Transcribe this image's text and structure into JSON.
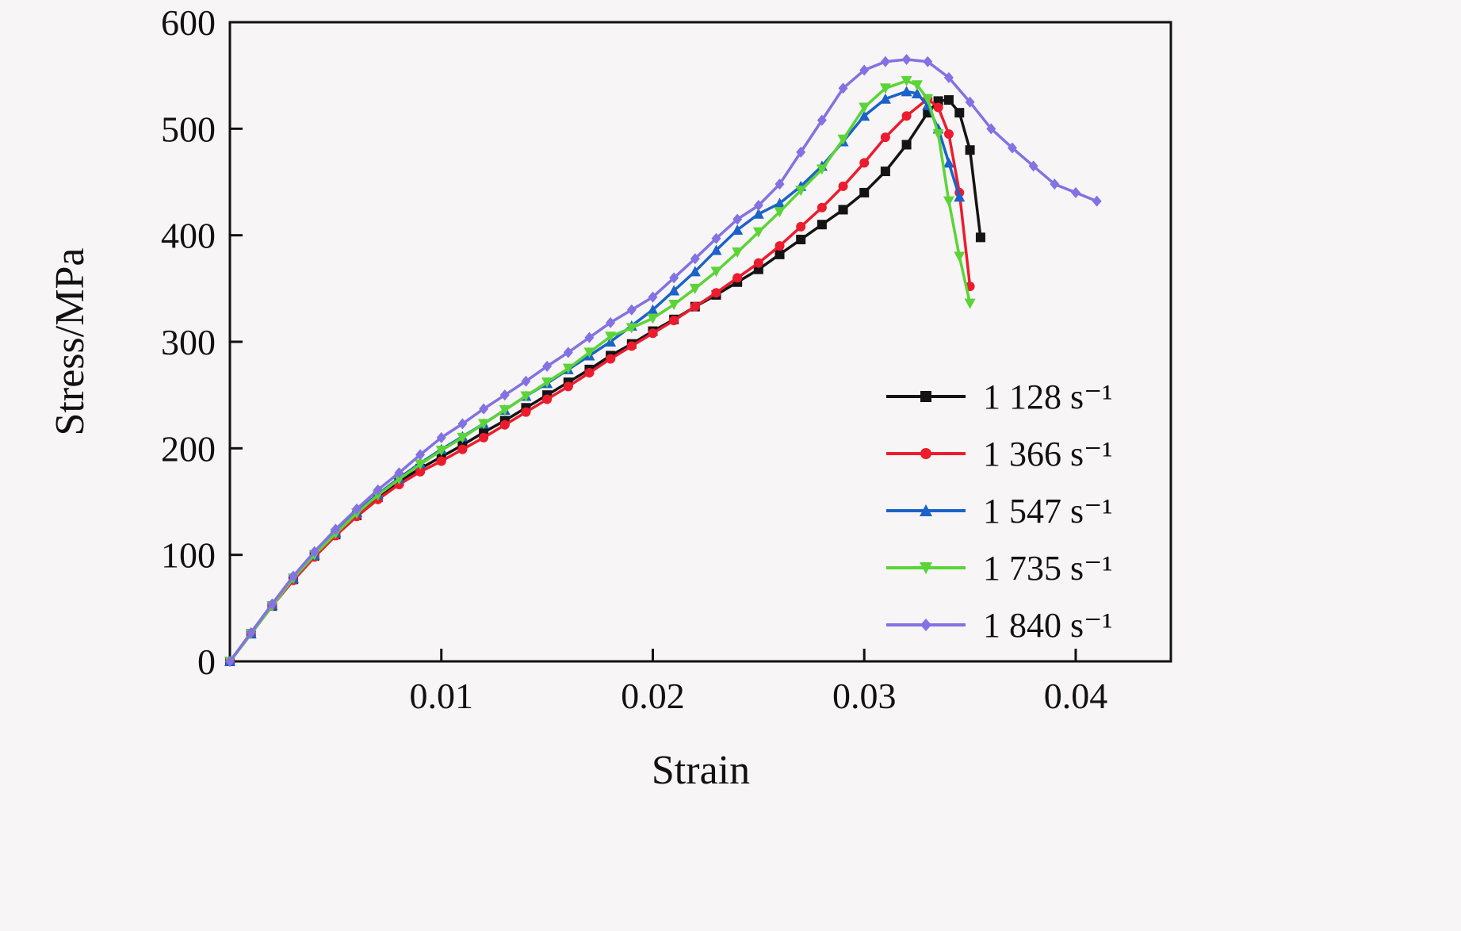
{
  "chart_data": {
    "type": "line",
    "xlabel": "Strain",
    "ylabel": "Stress/MPa",
    "xlim": [
      0,
      0.0445
    ],
    "ylim": [
      0,
      600
    ],
    "xticks": [
      "0.01",
      "0.02",
      "0.03",
      "0.04"
    ],
    "yticks": [
      "0",
      "100",
      "200",
      "300",
      "400",
      "500",
      "600"
    ],
    "grid": false,
    "legend_position": "right-middle",
    "series": [
      {
        "name": "1 128 s⁻¹",
        "color": "#141414",
        "marker": "square",
        "x": [
          0,
          0.001,
          0.002,
          0.003,
          0.004,
          0.005,
          0.006,
          0.007,
          0.008,
          0.009,
          0.01,
          0.011,
          0.012,
          0.013,
          0.014,
          0.015,
          0.016,
          0.017,
          0.018,
          0.019,
          0.02,
          0.021,
          0.022,
          0.023,
          0.024,
          0.025,
          0.026,
          0.027,
          0.028,
          0.029,
          0.03,
          0.031,
          0.032,
          0.033,
          0.0335,
          0.034,
          0.0345,
          0.035,
          0.0355
        ],
        "y": [
          0,
          26,
          52,
          77,
          99,
          119,
          137,
          154,
          169,
          181,
          192,
          203,
          215,
          226,
          238,
          250,
          262,
          274,
          287,
          298,
          310,
          321,
          333,
          344,
          356,
          368,
          382,
          396,
          410,
          424,
          440,
          460,
          485,
          515,
          526,
          527,
          515,
          480,
          398
        ]
      },
      {
        "name": "1 366 s⁻¹",
        "color": "#ec1c2e",
        "marker": "circle",
        "x": [
          0,
          0.001,
          0.002,
          0.003,
          0.004,
          0.005,
          0.006,
          0.007,
          0.008,
          0.009,
          0.01,
          0.011,
          0.012,
          0.013,
          0.014,
          0.015,
          0.016,
          0.017,
          0.018,
          0.019,
          0.02,
          0.021,
          0.022,
          0.023,
          0.024,
          0.025,
          0.026,
          0.027,
          0.028,
          0.029,
          0.03,
          0.031,
          0.032,
          0.033,
          0.0335,
          0.034,
          0.0345,
          0.035
        ],
        "y": [
          0,
          26,
          52,
          76,
          98,
          118,
          136,
          152,
          166,
          178,
          188,
          199,
          210,
          222,
          234,
          246,
          258,
          271,
          284,
          296,
          308,
          320,
          333,
          346,
          360,
          374,
          390,
          408,
          426,
          446,
          468,
          492,
          512,
          528,
          520,
          495,
          440,
          352
        ]
      },
      {
        "name": "1 547 s⁻¹",
        "color": "#1b62c9",
        "marker": "triangle-up",
        "x": [
          0,
          0.001,
          0.002,
          0.003,
          0.004,
          0.005,
          0.006,
          0.007,
          0.008,
          0.009,
          0.01,
          0.011,
          0.012,
          0.013,
          0.014,
          0.015,
          0.016,
          0.017,
          0.018,
          0.019,
          0.02,
          0.021,
          0.022,
          0.023,
          0.024,
          0.025,
          0.026,
          0.027,
          0.028,
          0.029,
          0.03,
          0.031,
          0.032,
          0.0325,
          0.033,
          0.0335,
          0.034,
          0.0345
        ],
        "y": [
          0,
          26,
          53,
          78,
          100,
          121,
          140,
          157,
          172,
          186,
          199,
          211,
          223,
          236,
          249,
          261,
          274,
          287,
          300,
          315,
          330,
          348,
          366,
          386,
          405,
          420,
          430,
          446,
          465,
          488,
          512,
          528,
          535,
          533,
          522,
          500,
          468,
          436
        ]
      },
      {
        "name": "1 735 s⁻¹",
        "color": "#5bd438",
        "marker": "triangle-down",
        "x": [
          0,
          0.001,
          0.002,
          0.003,
          0.004,
          0.005,
          0.006,
          0.007,
          0.008,
          0.009,
          0.01,
          0.011,
          0.012,
          0.013,
          0.014,
          0.015,
          0.016,
          0.017,
          0.018,
          0.019,
          0.02,
          0.021,
          0.022,
          0.023,
          0.024,
          0.025,
          0.026,
          0.027,
          0.028,
          0.029,
          0.03,
          0.031,
          0.032,
          0.0325,
          0.033,
          0.0335,
          0.034,
          0.0345,
          0.035
        ],
        "y": [
          0,
          26,
          52,
          78,
          100,
          120,
          139,
          156,
          171,
          185,
          198,
          210,
          223,
          236,
          249,
          262,
          275,
          290,
          305,
          313,
          322,
          335,
          350,
          366,
          384,
          403,
          422,
          442,
          462,
          490,
          520,
          538,
          545,
          541,
          528,
          495,
          432,
          380,
          336
        ]
      },
      {
        "name": "1 840 s⁻¹",
        "color": "#8272e2",
        "marker": "diamond",
        "x": [
          0,
          0.001,
          0.002,
          0.003,
          0.004,
          0.005,
          0.006,
          0.007,
          0.008,
          0.009,
          0.01,
          0.011,
          0.012,
          0.013,
          0.014,
          0.015,
          0.016,
          0.017,
          0.018,
          0.019,
          0.02,
          0.021,
          0.022,
          0.023,
          0.024,
          0.025,
          0.026,
          0.027,
          0.028,
          0.029,
          0.03,
          0.031,
          0.032,
          0.033,
          0.034,
          0.035,
          0.036,
          0.037,
          0.038,
          0.039,
          0.04,
          0.041
        ],
        "y": [
          0,
          27,
          54,
          80,
          103,
          124,
          143,
          161,
          177,
          194,
          210,
          223,
          237,
          250,
          263,
          277,
          290,
          304,
          318,
          330,
          342,
          360,
          378,
          397,
          415,
          428,
          448,
          478,
          508,
          538,
          555,
          563,
          565,
          563,
          548,
          525,
          500,
          482,
          465,
          448,
          440,
          432
        ]
      }
    ]
  }
}
